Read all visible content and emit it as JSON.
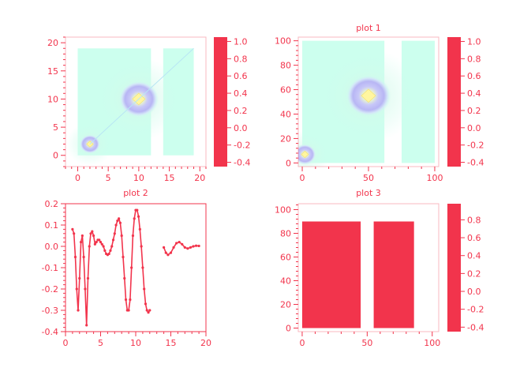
{
  "figure": {
    "accent": "#F2344C",
    "field_base": "#CCFFEE",
    "field_ring": "#B8B6F4",
    "field_core": "#FFFF99"
  },
  "chart_data": [
    {
      "id": "top-left",
      "type": "heatmap",
      "title": "",
      "xlim": [
        -2,
        21
      ],
      "ylim": [
        -2,
        21
      ],
      "xticks": [
        0,
        5,
        10,
        15,
        20
      ],
      "yticks": [
        0,
        5,
        10,
        15,
        20
      ],
      "x_tick_labels": [
        "0",
        "5",
        "10",
        "15",
        "20"
      ],
      "y_tick_labels": [
        "0",
        "5",
        "10",
        "15",
        "20"
      ],
      "regions": [
        {
          "x": [
            0,
            12
          ],
          "y": [
            0,
            19
          ]
        },
        {
          "x": [
            14,
            19
          ],
          "y": [
            0,
            19
          ]
        }
      ],
      "peaks": [
        {
          "x": 10,
          "y": 10,
          "r": 2.3
        },
        {
          "x": 2,
          "y": 2,
          "r": 1.2
        }
      ],
      "diagonal": {
        "from": [
          2,
          2
        ],
        "to": [
          19,
          19
        ]
      },
      "colorbar": {
        "ticks": [
          1.0,
          0.8,
          0.6,
          0.4,
          0.2,
          0.0,
          -0.2,
          -0.4
        ],
        "labels": [
          "1.0",
          "0.8",
          "0.6",
          "0.4",
          "0.2",
          "0.0",
          "-0.2",
          "-0.4"
        ],
        "range": [
          -0.45,
          1.05
        ]
      }
    },
    {
      "id": "plot-1",
      "type": "heatmap",
      "title": "plot 1",
      "xlim": [
        -3,
        103
      ],
      "ylim": [
        -3,
        103
      ],
      "xticks": [
        0,
        50,
        100
      ],
      "yticks": [
        0,
        20,
        40,
        60,
        80,
        100
      ],
      "x_tick_labels": [
        "0",
        "50",
        "100"
      ],
      "y_tick_labels": [
        "0",
        "20",
        "40",
        "60",
        "80",
        "100"
      ],
      "regions": [
        {
          "x": [
            0,
            62
          ],
          "y": [
            0,
            100
          ]
        },
        {
          "x": [
            75,
            100
          ],
          "y": [
            0,
            100
          ]
        }
      ],
      "peaks": [
        {
          "x": 50,
          "y": 55,
          "r": 12
        },
        {
          "x": 2,
          "y": 7,
          "r": 6
        }
      ],
      "colorbar": {
        "ticks": [
          1.0,
          0.8,
          0.6,
          0.4,
          0.2,
          0.0,
          -0.2,
          -0.4
        ],
        "labels": [
          "1.0",
          "0.8",
          "0.6",
          "0.4",
          "0.2",
          "0.0",
          "-0.2",
          "-0.4"
        ],
        "range": [
          -0.45,
          1.05
        ]
      }
    },
    {
      "id": "plot-2",
      "type": "line",
      "title": "plot 2",
      "xlim": [
        0,
        20
      ],
      "ylim": [
        -0.4,
        0.2
      ],
      "xticks": [
        0,
        5,
        10,
        15,
        20
      ],
      "yticks": [
        0.2,
        0.1,
        0.0,
        -0.1,
        -0.2,
        -0.3,
        -0.4
      ],
      "x_tick_labels": [
        "0",
        "5",
        "10",
        "15",
        "20"
      ],
      "y_tick_labels": [
        "0.2",
        "0.1",
        "0.0",
        "-0.1",
        "-0.2",
        "-0.3",
        "-0.4"
      ],
      "series": [
        {
          "values": [
            [
              1.0,
              0.08
            ],
            [
              1.2,
              0.06
            ],
            [
              1.4,
              -0.05
            ],
            [
              1.6,
              -0.2
            ],
            [
              1.8,
              -0.3
            ],
            [
              2.0,
              -0.15
            ],
            [
              2.2,
              0.02
            ],
            [
              2.4,
              0.05
            ],
            [
              2.6,
              -0.05
            ],
            [
              2.8,
              -0.2
            ],
            [
              3.0,
              -0.37
            ],
            [
              3.2,
              -0.15
            ],
            [
              3.4,
              0.0
            ],
            [
              3.6,
              0.06
            ],
            [
              3.8,
              0.07
            ],
            [
              4.0,
              0.05
            ],
            [
              4.2,
              0.01
            ],
            [
              4.4,
              0.02
            ],
            [
              4.6,
              0.03
            ],
            [
              4.8,
              0.03
            ],
            [
              5.0,
              0.02
            ],
            [
              5.2,
              0.01
            ],
            [
              5.4,
              0.0
            ],
            [
              5.6,
              -0.02
            ],
            [
              5.8,
              -0.035
            ],
            [
              6.0,
              -0.04
            ],
            [
              6.2,
              -0.035
            ],
            [
              6.4,
              -0.02
            ],
            [
              6.6,
              0.0
            ],
            [
              6.8,
              0.03
            ],
            [
              7.0,
              0.06
            ],
            [
              7.2,
              0.1
            ],
            [
              7.4,
              0.12
            ],
            [
              7.6,
              0.13
            ],
            [
              7.8,
              0.11
            ],
            [
              8.0,
              0.05
            ],
            [
              8.2,
              -0.05
            ],
            [
              8.4,
              -0.15
            ],
            [
              8.6,
              -0.25
            ],
            [
              8.8,
              -0.3
            ],
            [
              9.0,
              -0.3
            ],
            [
              9.2,
              -0.25
            ],
            [
              9.4,
              -0.1
            ],
            [
              9.6,
              0.05
            ],
            [
              9.8,
              0.13
            ],
            [
              10.0,
              0.17
            ],
            [
              10.2,
              0.17
            ],
            [
              10.4,
              0.14
            ],
            [
              10.6,
              0.08
            ],
            [
              10.8,
              0.0
            ],
            [
              11.0,
              -0.1
            ],
            [
              11.2,
              -0.2
            ],
            [
              11.4,
              -0.27
            ],
            [
              11.6,
              -0.3
            ],
            [
              11.8,
              -0.31
            ],
            [
              12.0,
              -0.3
            ]
          ]
        },
        {
          "values": [
            [
              14.0,
              -0.005
            ],
            [
              14.3,
              -0.03
            ],
            [
              14.6,
              -0.04
            ],
            [
              15.0,
              -0.03
            ],
            [
              15.4,
              -0.005
            ],
            [
              15.8,
              0.015
            ],
            [
              16.2,
              0.02
            ],
            [
              16.6,
              0.01
            ],
            [
              17.0,
              -0.005
            ],
            [
              17.4,
              -0.01
            ],
            [
              17.8,
              -0.005
            ],
            [
              18.2,
              0.0
            ],
            [
              18.6,
              0.003
            ],
            [
              19.0,
              0.002
            ]
          ]
        }
      ]
    },
    {
      "id": "plot-3",
      "type": "heatmap",
      "title": "plot 3",
      "xlim": [
        -3,
        105
      ],
      "ylim": [
        -3,
        105
      ],
      "xticks": [
        0,
        50,
        100
      ],
      "yticks": [
        0,
        20,
        40,
        60,
        80,
        100
      ],
      "x_tick_labels": [
        "0",
        "50",
        "100"
      ],
      "y_tick_labels": [
        "0",
        "20",
        "40",
        "60",
        "80",
        "100"
      ],
      "regions": [
        {
          "x": [
            0,
            45
          ],
          "y": [
            0,
            90
          ]
        },
        {
          "x": [
            55,
            86
          ],
          "y": [
            0,
            90
          ]
        }
      ],
      "colorbar": {
        "ticks": [
          0.8,
          0.6,
          0.4,
          0.2,
          0.0,
          -0.2,
          -0.4
        ],
        "labels": [
          "0.8",
          "0.6",
          "0.4",
          "0.2",
          "0.0",
          "-0.2",
          "-0.4"
        ],
        "range": [
          -0.45,
          0.98
        ]
      }
    }
  ]
}
